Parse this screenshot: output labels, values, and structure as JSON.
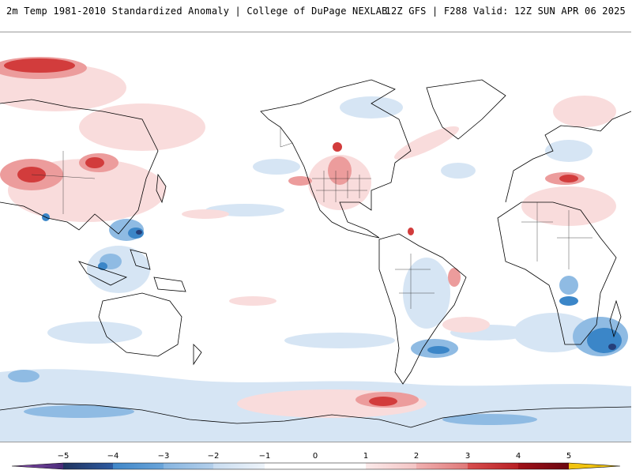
{
  "header": {
    "title_left": "2m Temp 1981-2010 Standardized Anomaly | College of DuPage NEXLAB",
    "title_right": "12Z GFS | F288 Valid: 12Z SUN APR 06 2025"
  },
  "legend": {
    "ticks": [
      "−5",
      "−4",
      "−3",
      "−2",
      "−1",
      "0",
      "1",
      "2",
      "3",
      "4",
      "5"
    ],
    "colors": [
      "#6a3d9a",
      "#253f7a",
      "#3b86c8",
      "#7fb2df",
      "#c4d9ef",
      "#ffffff",
      "#f6cfcf",
      "#e88f8f",
      "#cc3a3a",
      "#8e0d14",
      "#f2c40f"
    ]
  },
  "colors": {
    "neg_light": "#d6e5f4",
    "neg_medium": "#8fbbe3",
    "neg_strong": "#3b86c8",
    "neg_extreme": "#253f7a",
    "pos_light": "#f9dcdc",
    "pos_medium": "#ec9c9c",
    "pos_strong": "#d23c3c",
    "pos_extreme": "#8e0d14",
    "coastline": "#000000"
  }
}
